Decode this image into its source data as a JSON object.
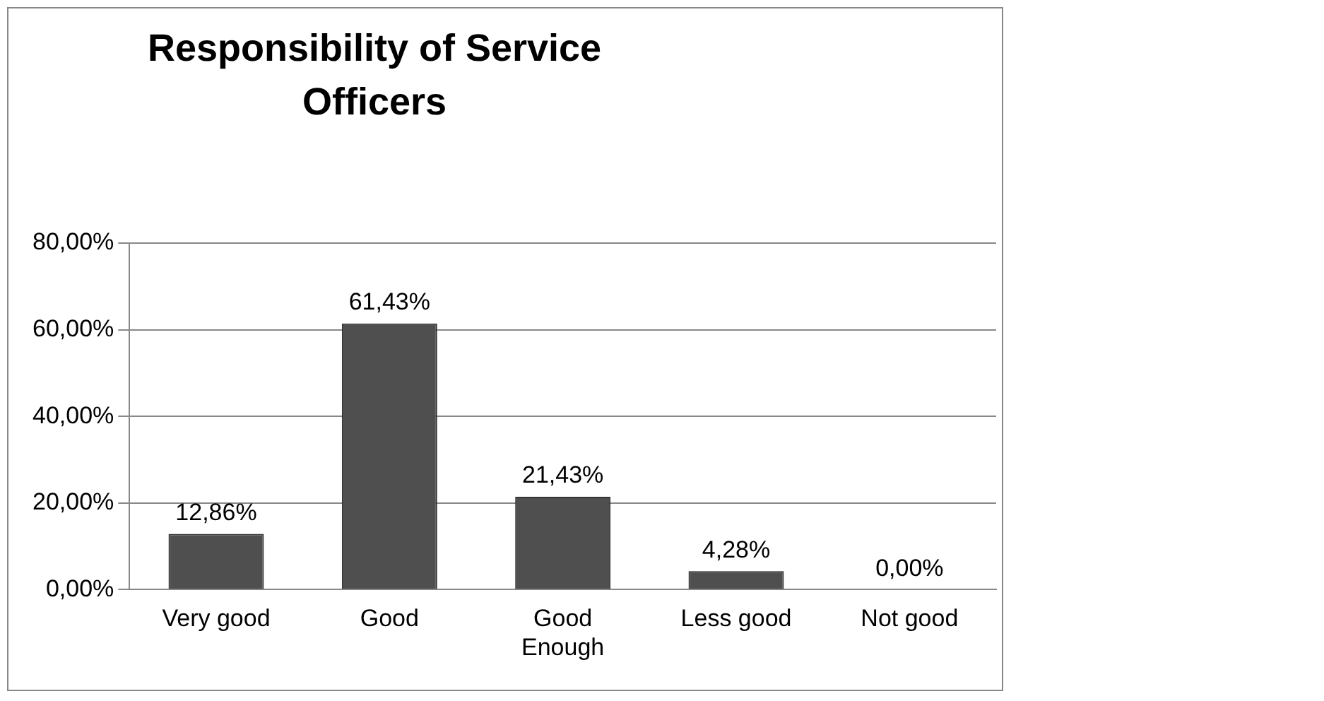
{
  "chart_data": {
    "type": "bar",
    "title": "Responsibility of Service Officers",
    "categories": [
      "Very good",
      "Good",
      "Good Enough",
      "Less good",
      "Not good"
    ],
    "values": [
      12.86,
      61.43,
      21.43,
      4.28,
      0
    ],
    "value_labels": [
      "12,86%",
      "61,43%",
      "21,43%",
      "4,28%",
      "0,00%"
    ],
    "color": "#4f4f4f",
    "ylim": [
      0,
      80
    ],
    "yticks": [
      {
        "value": 0,
        "label": "0,00%"
      },
      {
        "value": 20,
        "label": "20,00%"
      },
      {
        "value": 40,
        "label": "40,00%"
      },
      {
        "value": 60,
        "label": "60,00%"
      },
      {
        "value": 80,
        "label": "80,00%"
      }
    ],
    "grid": "y",
    "legend": false
  }
}
